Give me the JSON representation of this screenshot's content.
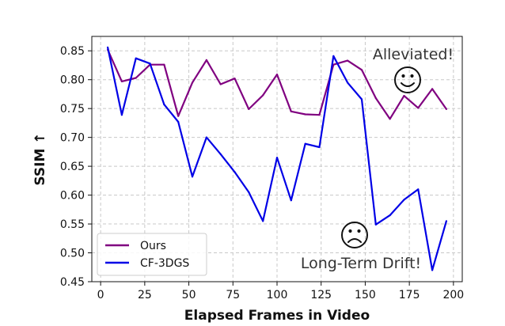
{
  "chart_data": {
    "type": "line",
    "xlabel": "Elapsed Frames in Video",
    "ylabel": "SSIM ↑",
    "xlim": [
      -5,
      205
    ],
    "ylim": [
      0.45,
      0.875
    ],
    "xticks": [
      0,
      25,
      50,
      75,
      100,
      125,
      150,
      175,
      200
    ],
    "xtick_labels": [
      "0",
      "25",
      "50",
      "75",
      "100",
      "125",
      "150",
      "175",
      "200"
    ],
    "yticks": [
      0.45,
      0.5,
      0.55,
      0.6,
      0.65,
      0.7,
      0.75,
      0.8,
      0.85
    ],
    "ytick_labels": [
      "0.45",
      "0.50",
      "0.55",
      "0.60",
      "0.65",
      "0.70",
      "0.75",
      "0.80",
      "0.85"
    ],
    "grid": true,
    "legend_position": "bottom-left",
    "series": [
      {
        "name": "Ours",
        "color": "#800080",
        "x": [
          4,
          12,
          20,
          28,
          36,
          44,
          52,
          60,
          68,
          76,
          84,
          92,
          100,
          108,
          116,
          124,
          132,
          140,
          148,
          156,
          164,
          172,
          180,
          188,
          196
        ],
        "y": [
          0.852,
          0.797,
          0.803,
          0.826,
          0.826,
          0.737,
          0.795,
          0.834,
          0.792,
          0.802,
          0.749,
          0.773,
          0.809,
          0.745,
          0.74,
          0.739,
          0.826,
          0.833,
          0.817,
          0.768,
          0.732,
          0.772,
          0.751,
          0.784,
          0.749
        ]
      },
      {
        "name": "CF-3DGS",
        "color": "#0000e6",
        "x": [
          4,
          12,
          20,
          28,
          36,
          44,
          52,
          60,
          68,
          76,
          84,
          92,
          100,
          108,
          116,
          124,
          132,
          140,
          148,
          156,
          164,
          172,
          180,
          188,
          196
        ],
        "y": [
          0.856,
          0.739,
          0.837,
          0.828,
          0.757,
          0.727,
          0.632,
          0.7,
          0.671,
          0.64,
          0.605,
          0.555,
          0.665,
          0.591,
          0.689,
          0.683,
          0.841,
          0.795,
          0.766,
          0.549,
          0.565,
          0.592,
          0.61,
          0.47,
          0.555
        ]
      }
    ],
    "annotations": [
      {
        "text": "Alleviated!",
        "emoji": "☺",
        "near_series": "Ours"
      },
      {
        "text": "Long-Term Drift!",
        "emoji": "☹",
        "near_series": "CF-3DGS"
      }
    ]
  }
}
